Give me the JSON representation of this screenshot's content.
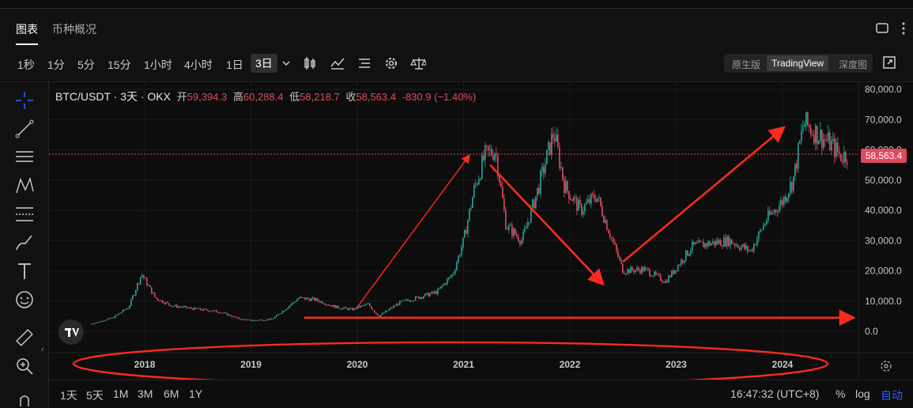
{
  "tabs": [
    {
      "label": "图表"
    },
    {
      "label": "币种概况"
    }
  ],
  "timeframes": [
    "1秒",
    "1分",
    "5分",
    "15分",
    "1小时",
    "4小时",
    "1日",
    "3日"
  ],
  "active_timeframe": "3日",
  "view_modes": [
    "原生版",
    "TradingView",
    "深度图"
  ],
  "selected_view": "TradingView",
  "legend": {
    "symbol": "BTC/USDT · 3天 · OKX",
    "open_label": "开",
    "open": "59,394.3",
    "high_label": "高",
    "high": "60,288.4",
    "low_label": "低",
    "low": "58,218.7",
    "close_label": "收",
    "close": "58,563.4",
    "change": "-830.9 (−1.40%)"
  },
  "price_tag": "58,563.4",
  "range_buttons": [
    "1天",
    "5天",
    "1M",
    "3M",
    "6M",
    "1Y"
  ],
  "clock": "16:47:32 (UTC+8)",
  "scale_options": {
    "percent": "%",
    "log": "log",
    "auto": "自动"
  },
  "colors": {
    "up": "#26a69a",
    "down": "#e04a5f",
    "annotation": "#ff2a1f",
    "accent": "#2962ff"
  },
  "chart_data": {
    "type": "candlestick-line",
    "title": "BTC/USDT · 3天 · OKX",
    "x_ticks": [
      "2018",
      "2019",
      "2020",
      "2021",
      "2022",
      "2023",
      "2024"
    ],
    "y_ticks": [
      "80,000.0",
      "70,000.0",
      "60,000.0",
      "50,000.0",
      "40,000.0",
      "30,000.0",
      "20,000.0",
      "10,000.0",
      "0.0"
    ],
    "ylim": [
      0,
      80000
    ],
    "xlim": [
      2017.1,
      2024.7
    ],
    "series": [
      {
        "x": [
          2017.5,
          2017.7,
          2017.85,
          2017.97,
          2018.1,
          2018.25,
          2018.45,
          2018.7,
          2018.9,
          2019.0,
          2019.2,
          2019.45,
          2019.6,
          2019.8,
          2019.95,
          2020.1,
          2020.2,
          2020.4,
          2020.6,
          2020.75,
          2020.9,
          2021.0,
          2021.1,
          2021.2,
          2021.3,
          2021.4,
          2021.55,
          2021.7,
          2021.85,
          2021.95,
          2022.1,
          2022.25,
          2022.4,
          2022.5,
          2022.7,
          2022.9,
          2023.0,
          2023.15,
          2023.3,
          2023.5,
          2023.7,
          2023.85,
          2024.0,
          2024.1,
          2024.2,
          2024.3,
          2024.45,
          2024.55,
          2024.62
        ],
        "y": [
          2500,
          4500,
          8000,
          19000,
          11000,
          8500,
          7500,
          6500,
          4000,
          3600,
          4000,
          11000,
          10500,
          8000,
          7200,
          9000,
          5000,
          9500,
          11500,
          13000,
          19000,
          30000,
          47000,
          58000,
          60000,
          35000,
          30000,
          47000,
          66000,
          48000,
          40000,
          45000,
          30000,
          20000,
          20500,
          16500,
          21000,
          28000,
          29000,
          30000,
          26500,
          37000,
          43000,
          50000,
          69000,
          66000,
          62000,
          58000,
          58563
        ]
      }
    ]
  },
  "annotation_arrows": [
    {
      "from": [
        2020.0,
        8000
      ],
      "to": [
        2021.05,
        58000
      ]
    },
    {
      "from": [
        2021.25,
        55000
      ],
      "to": [
        2022.3,
        16000
      ]
    },
    {
      "from": [
        2022.5,
        23000
      ],
      "to": [
        2024.0,
        67000
      ]
    },
    {
      "from": [
        2019.5,
        4500
      ],
      "to": [
        2024.65,
        4500
      ]
    }
  ]
}
